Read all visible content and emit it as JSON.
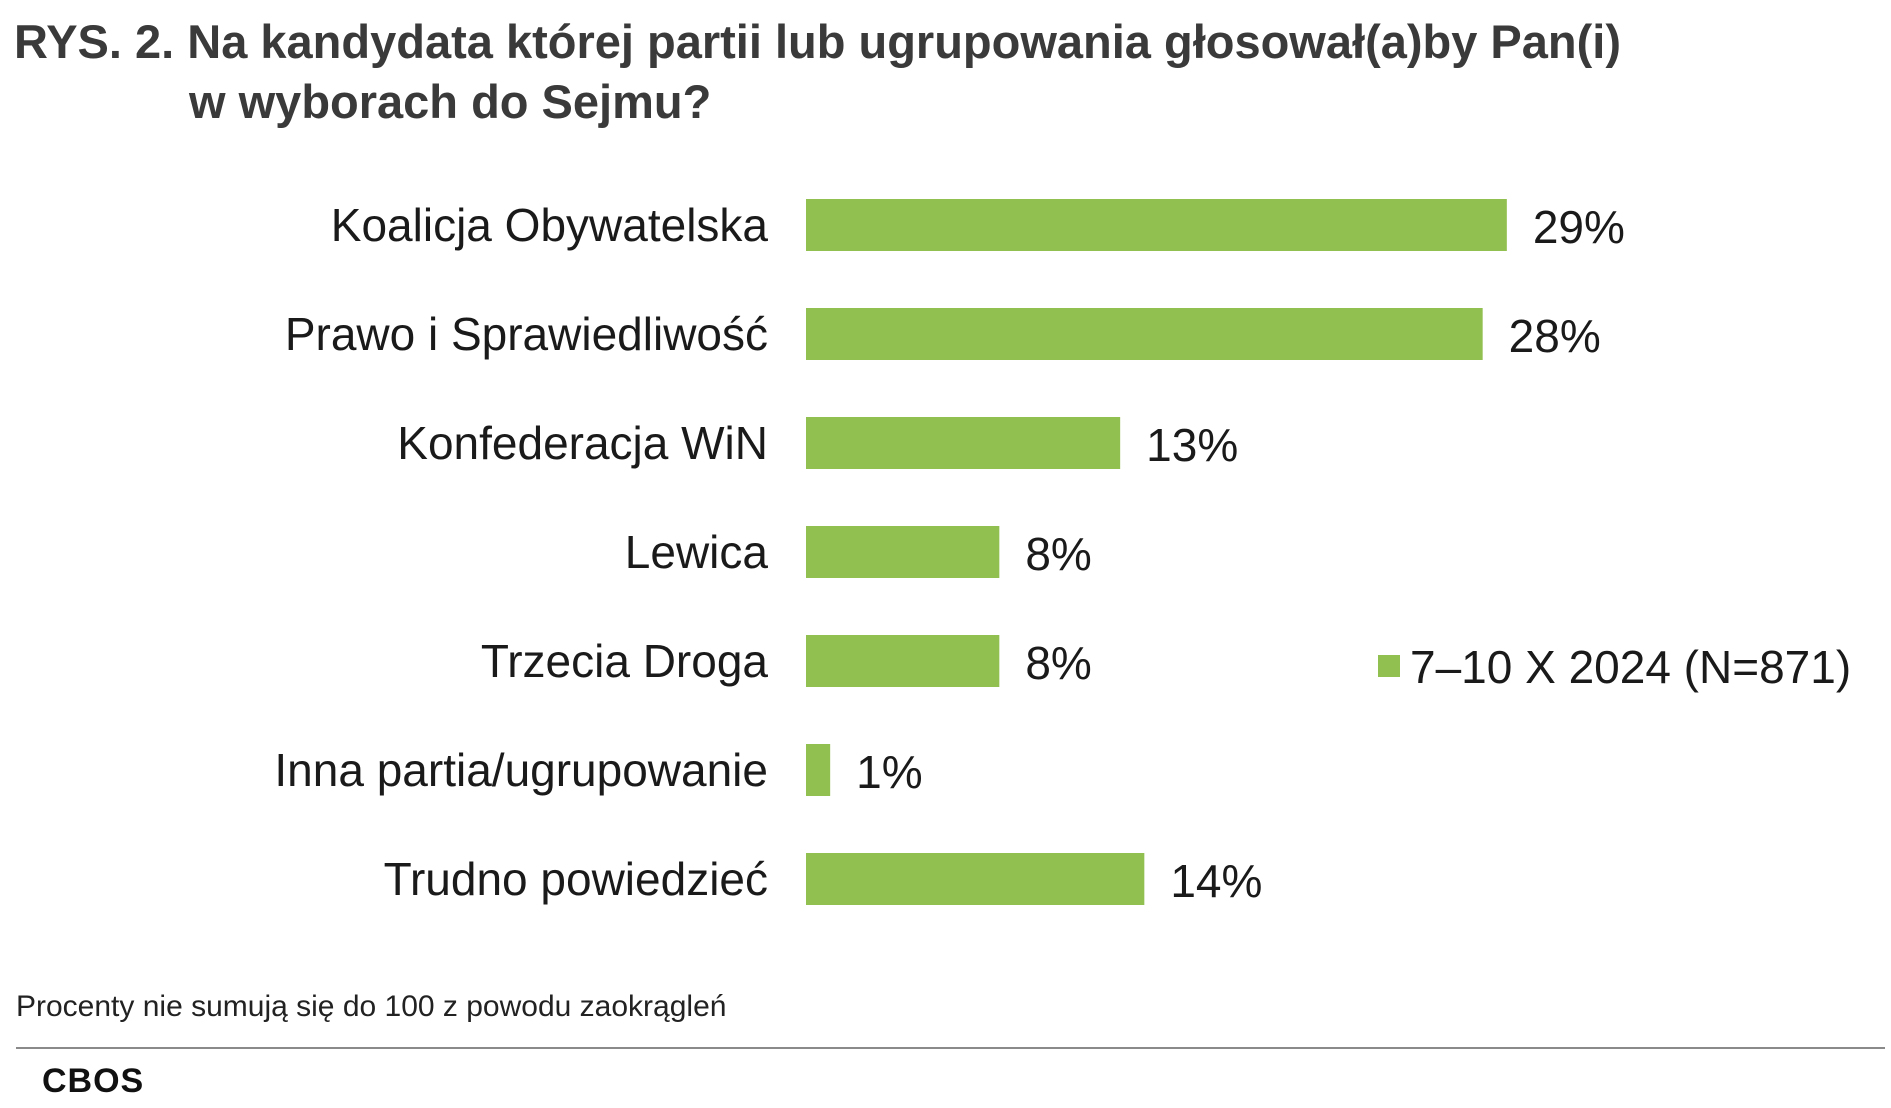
{
  "title": {
    "line1": "RYS. 2. Na kandydata której partii lub ugrupowania głosował(a)by Pan(i)",
    "line2": "w wyborach do Sejmu?"
  },
  "chart_data": {
    "type": "bar",
    "orientation": "horizontal",
    "categories": [
      "Koalicja Obywatelska",
      "Prawo i Sprawiedliwość",
      "Konfederacja WiN",
      "Lewica",
      "Trzecia Droga",
      "Inna partia/ugrupowanie",
      "Trudno powiedzieć"
    ],
    "series": [
      {
        "name": "7–10 X 2024 (N=871)",
        "values": [
          29,
          28,
          13,
          8,
          8,
          1,
          14
        ],
        "color": "#92c050"
      }
    ],
    "value_labels": [
      "29%",
      "28%",
      "13%",
      "8%",
      "8%",
      "1%",
      "14%"
    ],
    "unit": "%",
    "xlim": [
      0,
      30
    ],
    "grid": false,
    "legend_position": "right"
  },
  "note": "Procenty nie sumują się do 100 z powodu zaokrągleń",
  "source": "CBOS"
}
